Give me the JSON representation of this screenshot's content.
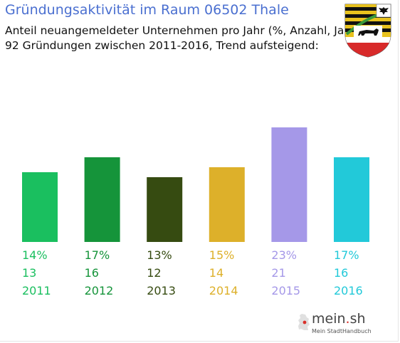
{
  "header": {
    "title": "Gründungsaktivität im Raum 06502 Thale",
    "subtitle_line1": "Anteil neuangemeldeter Unternehmen pro Jahr (%, Anzahl, Jahr)",
    "subtitle_line2": "92 Gründungen zwischen 2011-2016, Trend aufsteigend:"
  },
  "logo": {
    "name_main": "mein",
    "name_dot": ".",
    "name_tld": "sh",
    "tagline": "Mein StadtHandbuch"
  },
  "chart_data": {
    "type": "bar",
    "title": "Gründungsaktivität im Raum 06502 Thale",
    "categories": [
      "2011",
      "2012",
      "2013",
      "2014",
      "2015",
      "2016"
    ],
    "values": [
      14,
      17,
      13,
      15,
      23,
      17
    ],
    "counts": [
      13,
      16,
      12,
      14,
      21,
      16
    ],
    "percent_labels": [
      "14%",
      "17%",
      "13%",
      "15%",
      "23%",
      "17%"
    ],
    "colors": [
      "#1abf5f",
      "#15943a",
      "#364b11",
      "#ddb02a",
      "#a598e8",
      "#22c9d9"
    ],
    "grid": false,
    "legend": "none"
  }
}
